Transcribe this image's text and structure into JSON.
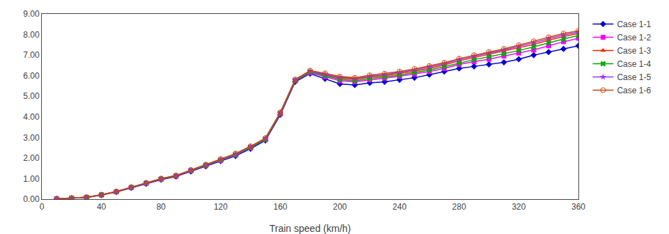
{
  "chart_data": {
    "type": "line",
    "xlabel": "Train speed (km/h)",
    "x": [
      10,
      20,
      30,
      40,
      50,
      60,
      70,
      80,
      90,
      100,
      110,
      120,
      130,
      140,
      150,
      160,
      170,
      180,
      190,
      200,
      210,
      220,
      230,
      240,
      250,
      260,
      270,
      280,
      290,
      300,
      310,
      320,
      330,
      340,
      350,
      360
    ],
    "xlim": [
      0,
      360
    ],
    "xticks": [
      0,
      40,
      80,
      120,
      160,
      200,
      240,
      280,
      320,
      360
    ],
    "ylim": [
      0,
      9
    ],
    "yticks": [
      {
        "value": 0,
        "label": "0.00"
      },
      {
        "value": 1,
        "label": "1.00"
      },
      {
        "value": 2,
        "label": "2.00"
      },
      {
        "value": 3,
        "label": "3.00"
      },
      {
        "value": 4,
        "label": "4.00"
      },
      {
        "value": 5,
        "label": "5.00"
      },
      {
        "value": 6,
        "label": "6.00"
      },
      {
        "value": 7,
        "label": "7.00"
      },
      {
        "value": 8,
        "label": "8.00"
      },
      {
        "value": 9,
        "label": "9.00"
      }
    ],
    "grid": false,
    "legend": "right",
    "series": [
      {
        "name": "Case 1-1",
        "color": "#0000CD",
        "marker": "diamond",
        "values": [
          0.02,
          0.05,
          0.08,
          0.2,
          0.35,
          0.55,
          0.75,
          0.95,
          1.1,
          1.35,
          1.6,
          1.85,
          2.1,
          2.45,
          2.85,
          4.1,
          5.7,
          6.1,
          5.85,
          5.6,
          5.55,
          5.65,
          5.7,
          5.8,
          5.9,
          6.05,
          6.2,
          6.35,
          6.45,
          6.55,
          6.65,
          6.8,
          7.0,
          7.15,
          7.3,
          7.45
        ]
      },
      {
        "name": "Case 1-2",
        "color": "#FF00FF",
        "marker": "square",
        "values": [
          0.02,
          0.05,
          0.09,
          0.21,
          0.36,
          0.57,
          0.77,
          0.97,
          1.12,
          1.38,
          1.63,
          1.88,
          2.15,
          2.5,
          2.9,
          4.15,
          5.75,
          6.15,
          5.95,
          5.75,
          5.7,
          5.8,
          5.88,
          5.97,
          6.08,
          6.2,
          6.35,
          6.55,
          6.68,
          6.8,
          6.95,
          7.1,
          7.25,
          7.45,
          7.65,
          7.82
        ]
      },
      {
        "name": "Case 1-3",
        "color": "#FF2200",
        "marker": "triangle-up",
        "values": [
          0.02,
          0.05,
          0.09,
          0.21,
          0.37,
          0.58,
          0.78,
          0.99,
          1.14,
          1.4,
          1.65,
          1.92,
          2.18,
          2.53,
          2.93,
          4.18,
          5.78,
          6.2,
          6.05,
          5.88,
          5.82,
          5.93,
          6.0,
          6.1,
          6.22,
          6.35,
          6.52,
          6.72,
          6.88,
          7.02,
          7.18,
          7.35,
          7.52,
          7.72,
          7.9,
          8.05
        ]
      },
      {
        "name": "Case 1-4",
        "color": "#00AA00",
        "marker": "x",
        "values": [
          0.02,
          0.05,
          0.09,
          0.21,
          0.36,
          0.57,
          0.78,
          0.98,
          1.13,
          1.39,
          1.64,
          1.9,
          2.16,
          2.51,
          2.91,
          4.16,
          5.76,
          6.18,
          6.0,
          5.82,
          5.75,
          5.86,
          5.94,
          6.03,
          6.15,
          6.28,
          6.44,
          6.62,
          6.78,
          6.92,
          7.06,
          7.22,
          7.4,
          7.6,
          7.78,
          7.95
        ]
      },
      {
        "name": "Case 1-5",
        "color": "#9933FF",
        "marker": "star",
        "values": [
          0.02,
          0.05,
          0.09,
          0.21,
          0.37,
          0.58,
          0.79,
          1.0,
          1.15,
          1.41,
          1.67,
          1.93,
          2.2,
          2.55,
          2.95,
          4.2,
          5.8,
          6.22,
          6.08,
          5.92,
          5.86,
          5.97,
          6.05,
          6.16,
          6.28,
          6.42,
          6.58,
          6.78,
          6.95,
          7.1,
          7.25,
          7.42,
          7.6,
          7.8,
          7.98,
          8.12
        ]
      },
      {
        "name": "Case 1-6",
        "color": "#CC4400",
        "marker": "circle-open",
        "values": [
          0.02,
          0.05,
          0.09,
          0.21,
          0.37,
          0.58,
          0.79,
          1.0,
          1.15,
          1.42,
          1.68,
          1.95,
          2.22,
          2.57,
          2.97,
          4.22,
          5.82,
          6.25,
          6.12,
          5.96,
          5.9,
          6.02,
          6.1,
          6.2,
          6.33,
          6.47,
          6.63,
          6.83,
          7.0,
          7.15,
          7.3,
          7.48,
          7.67,
          7.87,
          8.05,
          8.18
        ]
      }
    ]
  }
}
